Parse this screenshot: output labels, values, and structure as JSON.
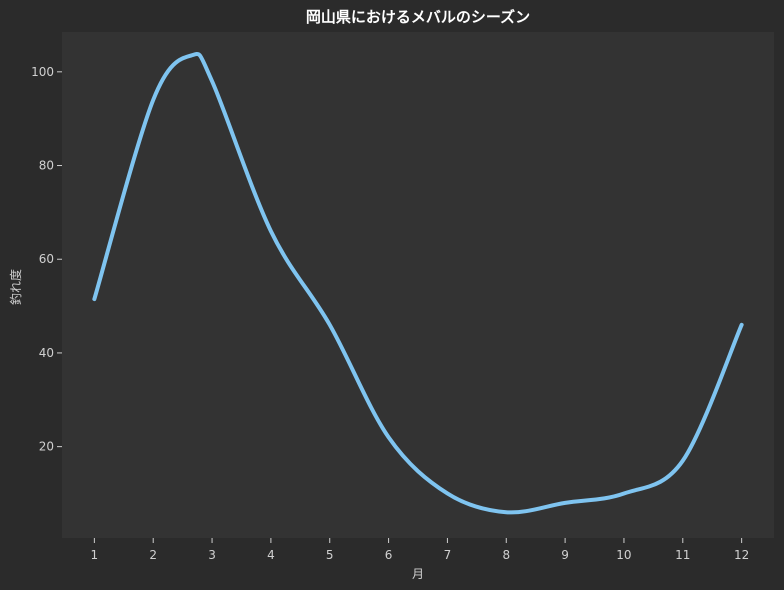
{
  "chart_data": {
    "type": "line",
    "title": "岡山県におけるメバルのシーズン",
    "xlabel": "月",
    "ylabel": "釣れ度",
    "x": [
      1,
      2,
      3,
      4,
      5,
      6,
      7,
      8,
      9,
      10,
      11,
      12
    ],
    "xticks": [
      "1",
      "2",
      "3",
      "4",
      "5",
      "6",
      "7",
      "8",
      "9",
      "10",
      "11",
      "12"
    ],
    "yticks": [
      "20",
      "40",
      "60",
      "80",
      "100"
    ],
    "xlim": [
      0.45,
      12.55
    ],
    "ylim": [
      0.5,
      108.5
    ],
    "series": [
      {
        "values": [
          51.5,
          94,
          98,
          66,
          46,
          22,
          10,
          6,
          8,
          10,
          17,
          46
        ],
        "peak": {
          "x": 2.65,
          "y": 103.5
        },
        "color": "#7fc4f0"
      }
    ],
    "grid": false,
    "background": "#2b2b2b",
    "plot_background": "#333333"
  }
}
